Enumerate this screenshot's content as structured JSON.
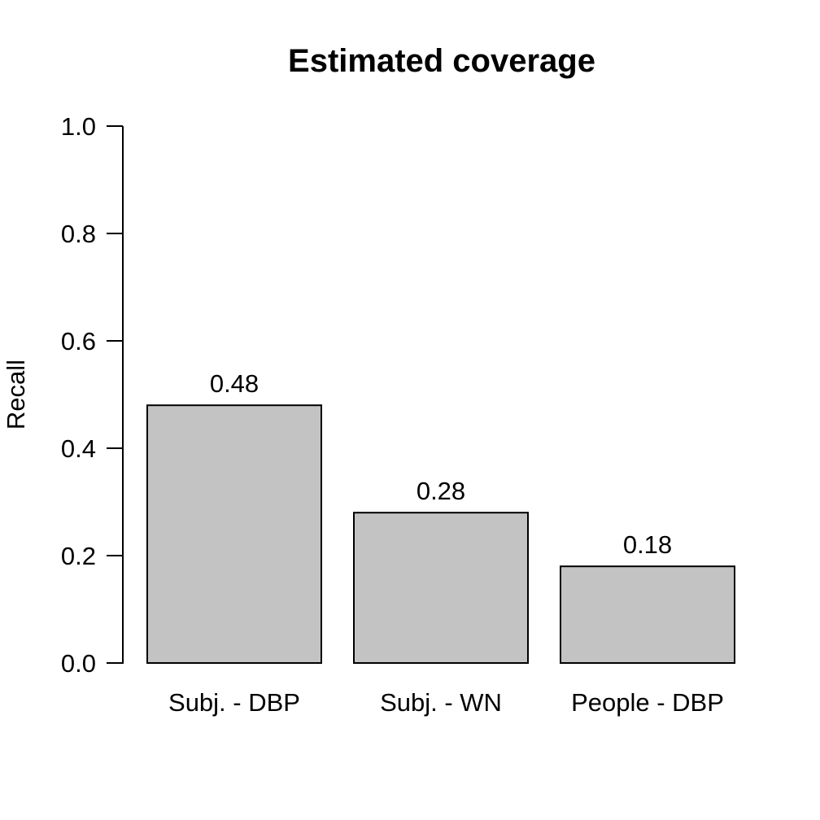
{
  "chart_data": {
    "type": "bar",
    "title": "Estimated coverage",
    "xlabel": "",
    "ylabel": "Recall",
    "categories": [
      "Subj. - DBP",
      "Subj. - WN",
      "People - DBP"
    ],
    "values": [
      0.48,
      0.28,
      0.18
    ],
    "value_labels": [
      "0.48",
      "0.28",
      "0.18"
    ],
    "ylim": [
      0.0,
      1.0
    ],
    "yticks": [
      0.0,
      0.2,
      0.4,
      0.6,
      0.8,
      1.0
    ],
    "ytick_labels": [
      "0.0",
      "0.2",
      "0.4",
      "0.6",
      "0.8",
      "1.0"
    ],
    "grid": "off",
    "legend": "none",
    "bar_fill": "#C3C3C3",
    "bar_stroke": "#000000",
    "axis_color": "#000000",
    "background": "#FFFFFF"
  }
}
